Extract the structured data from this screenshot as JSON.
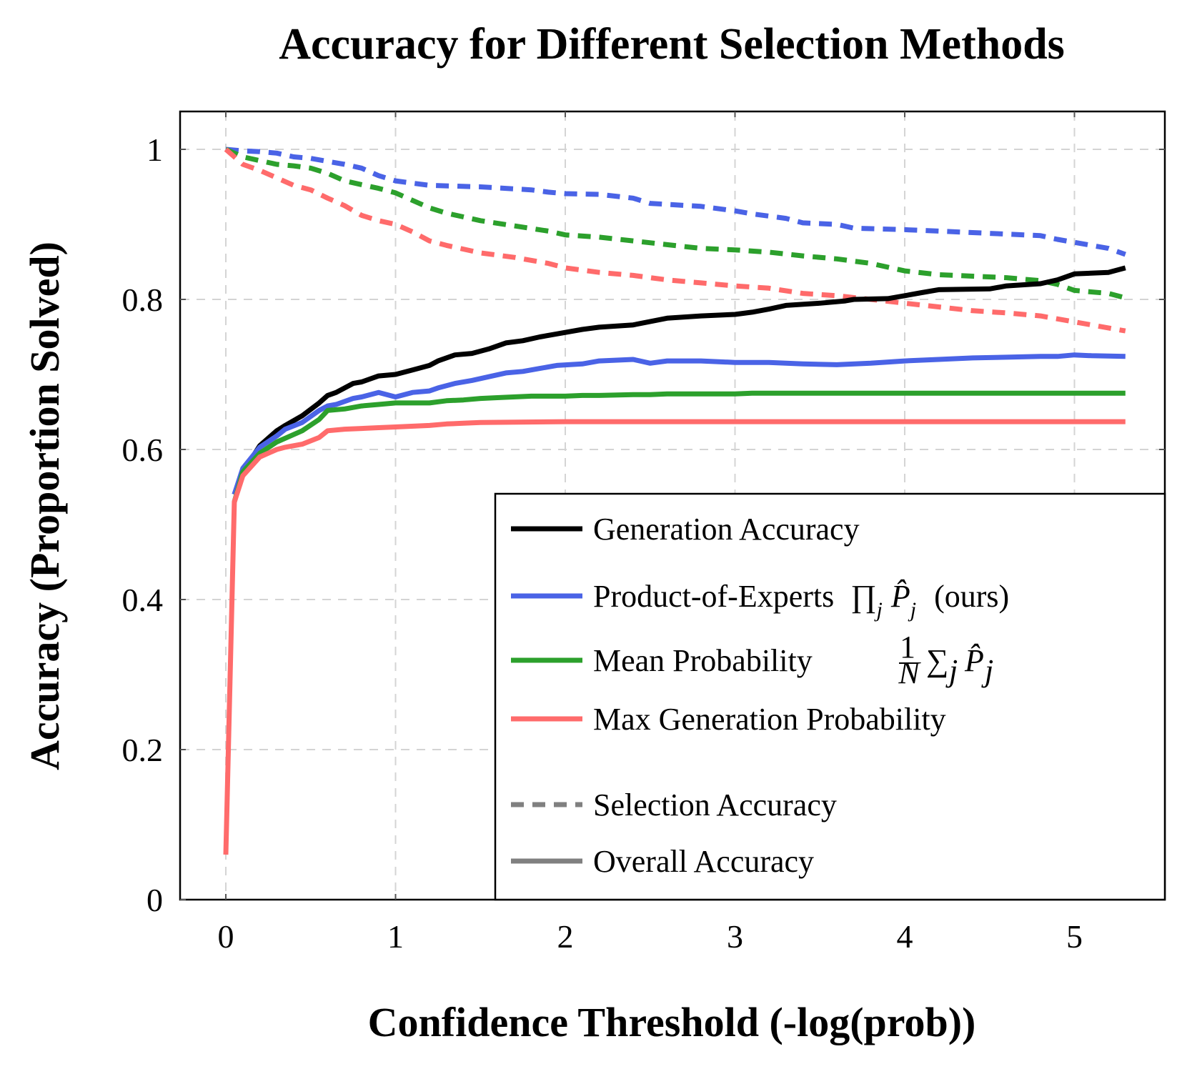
{
  "chart_data": {
    "type": "line",
    "title": "Accuracy for Different Selection Methods",
    "xlabel": "Confidence Threshold (-log(prob))",
    "ylabel": "Accuracy (Proportion Solved)",
    "xlim": [
      -0.27,
      5.55
    ],
    "ylim": [
      0,
      1.05
    ],
    "xticks": [
      0,
      1,
      2,
      3,
      4,
      5
    ],
    "yticks": [
      0,
      0.2,
      0.4,
      0.6,
      0.8,
      1
    ],
    "ytick_labels": [
      "0",
      "0.2",
      "0.4",
      "0.6",
      "0.8",
      "1"
    ],
    "xtick_labels": [
      "0",
      "1",
      "2",
      "3",
      "4",
      "5"
    ],
    "grid": true,
    "legend_placement": "bottom-right",
    "colors": {
      "generation": "#000000",
      "product": "#4a63e6",
      "mean": "#2ca02c",
      "max": "#ff6b6b",
      "style_legend": "#808080"
    },
    "legend": {
      "generation": "Generation Accuracy",
      "product_prefix": "Product-of-Experts",
      "product_suffix": "(ours)",
      "mean_prefix": "Mean Probability",
      "max": "Max Generation Probability",
      "selection": "Selection Accuracy",
      "overall": "Overall Accuracy"
    },
    "series": [
      {
        "name": "Generation Accuracy",
        "style": "solid",
        "color": "#000000",
        "x": [
          0.05,
          0.1,
          0.2,
          0.3,
          0.35,
          0.45,
          0.55,
          0.6,
          0.65,
          0.75,
          0.8,
          0.9,
          1.0,
          1.1,
          1.2,
          1.25,
          1.35,
          1.45,
          1.55,
          1.65,
          1.75,
          1.85,
          1.95,
          2.1,
          2.2,
          2.4,
          2.6,
          2.8,
          3.0,
          3.1,
          3.2,
          3.3,
          3.5,
          3.65,
          3.7,
          3.9,
          4.0,
          4.1,
          4.2,
          4.5,
          4.6,
          4.8,
          4.9,
          5.0,
          5.2,
          5.3
        ],
        "y": [
          0.54,
          0.57,
          0.605,
          0.625,
          0.632,
          0.645,
          0.662,
          0.672,
          0.676,
          0.688,
          0.69,
          0.698,
          0.7,
          0.706,
          0.712,
          0.718,
          0.726,
          0.728,
          0.734,
          0.742,
          0.745,
          0.75,
          0.754,
          0.76,
          0.763,
          0.766,
          0.775,
          0.778,
          0.78,
          0.783,
          0.787,
          0.792,
          0.795,
          0.798,
          0.8,
          0.801,
          0.805,
          0.809,
          0.813,
          0.814,
          0.818,
          0.821,
          0.826,
          0.834,
          0.836,
          0.842
        ]
      },
      {
        "name": "Product-of-Experts (ours)",
        "style": "solid",
        "color": "#4a63e6",
        "x": [
          0.05,
          0.1,
          0.2,
          0.3,
          0.35,
          0.45,
          0.55,
          0.6,
          0.65,
          0.75,
          0.8,
          0.9,
          1.0,
          1.1,
          1.2,
          1.25,
          1.35,
          1.45,
          1.55,
          1.65,
          1.75,
          1.85,
          1.95,
          2.1,
          2.2,
          2.4,
          2.5,
          2.6,
          2.8,
          3.0,
          3.2,
          3.4,
          3.6,
          3.8,
          4.0,
          4.2,
          4.4,
          4.6,
          4.8,
          4.9,
          5.0,
          5.1,
          5.3
        ],
        "y": [
          0.54,
          0.575,
          0.603,
          0.618,
          0.627,
          0.636,
          0.652,
          0.658,
          0.66,
          0.668,
          0.67,
          0.676,
          0.67,
          0.676,
          0.678,
          0.682,
          0.688,
          0.692,
          0.697,
          0.702,
          0.704,
          0.708,
          0.712,
          0.714,
          0.718,
          0.72,
          0.715,
          0.718,
          0.718,
          0.716,
          0.716,
          0.714,
          0.713,
          0.715,
          0.718,
          0.72,
          0.722,
          0.723,
          0.724,
          0.724,
          0.726,
          0.725,
          0.724
        ]
      },
      {
        "name": "Mean Probability",
        "style": "solid",
        "color": "#2ca02c",
        "x": [
          0.05,
          0.1,
          0.2,
          0.3,
          0.35,
          0.45,
          0.55,
          0.6,
          0.7,
          0.8,
          0.9,
          1.0,
          1.1,
          1.2,
          1.3,
          1.4,
          1.5,
          1.6,
          1.8,
          2.0,
          2.1,
          2.2,
          2.4,
          2.5,
          2.6,
          2.7,
          2.8,
          3.0,
          3.1,
          4.0,
          5.0,
          5.3
        ],
        "y": [
          0.53,
          0.57,
          0.595,
          0.61,
          0.615,
          0.625,
          0.64,
          0.652,
          0.654,
          0.658,
          0.66,
          0.662,
          0.662,
          0.662,
          0.665,
          0.666,
          0.668,
          0.669,
          0.671,
          0.671,
          0.672,
          0.672,
          0.673,
          0.673,
          0.674,
          0.674,
          0.674,
          0.674,
          0.675,
          0.675,
          0.675,
          0.675
        ]
      },
      {
        "name": "Max Generation Probability",
        "style": "solid",
        "color": "#ff6b6b",
        "x": [
          0.0,
          0.05,
          0.1,
          0.2,
          0.3,
          0.35,
          0.45,
          0.55,
          0.6,
          0.7,
          0.8,
          0.9,
          1.0,
          1.2,
          1.3,
          1.4,
          1.5,
          2.0,
          3.0,
          4.0,
          5.0,
          5.3
        ],
        "y": [
          0.06,
          0.53,
          0.565,
          0.59,
          0.6,
          0.603,
          0.607,
          0.616,
          0.625,
          0.627,
          0.628,
          0.629,
          0.63,
          0.632,
          0.634,
          0.635,
          0.636,
          0.637,
          0.637,
          0.637,
          0.637,
          0.637
        ]
      },
      {
        "name": "Product-of-Experts Selection",
        "style": "dashed",
        "color": "#4a63e6",
        "x": [
          0.0,
          0.1,
          0.2,
          0.3,
          0.4,
          0.5,
          0.6,
          0.7,
          0.8,
          0.9,
          1.0,
          1.1,
          1.2,
          1.5,
          1.8,
          1.9,
          2.0,
          2.2,
          2.4,
          2.5,
          2.8,
          3.0,
          3.1,
          3.3,
          3.4,
          3.6,
          3.7,
          4.0,
          4.2,
          4.4,
          4.6,
          4.8,
          4.9,
          5.0,
          5.1,
          5.2,
          5.3
        ],
        "y": [
          1.0,
          0.998,
          0.997,
          0.995,
          0.99,
          0.988,
          0.984,
          0.98,
          0.975,
          0.965,
          0.958,
          0.955,
          0.952,
          0.95,
          0.946,
          0.943,
          0.941,
          0.94,
          0.935,
          0.928,
          0.924,
          0.918,
          0.914,
          0.908,
          0.902,
          0.9,
          0.895,
          0.893,
          0.891,
          0.889,
          0.887,
          0.885,
          0.88,
          0.876,
          0.872,
          0.868,
          0.86
        ]
      },
      {
        "name": "Mean Probability Selection",
        "style": "dashed",
        "color": "#2ca02c",
        "x": [
          0.0,
          0.1,
          0.2,
          0.3,
          0.4,
          0.5,
          0.6,
          0.7,
          0.8,
          0.9,
          1.0,
          1.1,
          1.2,
          1.3,
          1.5,
          1.7,
          1.9,
          2.0,
          2.2,
          2.4,
          2.6,
          2.8,
          3.0,
          3.2,
          3.4,
          3.6,
          3.8,
          4.0,
          4.2,
          4.4,
          4.6,
          4.8,
          4.9,
          5.0,
          5.2,
          5.3
        ],
        "y": [
          1.0,
          0.99,
          0.985,
          0.98,
          0.978,
          0.975,
          0.968,
          0.958,
          0.953,
          0.948,
          0.942,
          0.932,
          0.922,
          0.915,
          0.905,
          0.898,
          0.891,
          0.886,
          0.883,
          0.878,
          0.873,
          0.868,
          0.866,
          0.863,
          0.858,
          0.854,
          0.848,
          0.838,
          0.833,
          0.831,
          0.829,
          0.825,
          0.82,
          0.812,
          0.808,
          0.802
        ]
      },
      {
        "name": "Max Generation Probability Selection",
        "style": "dashed",
        "color": "#ff6b6b",
        "x": [
          0.0,
          0.1,
          0.2,
          0.3,
          0.4,
          0.5,
          0.6,
          0.7,
          0.8,
          0.9,
          1.0,
          1.1,
          1.2,
          1.3,
          1.5,
          1.7,
          1.9,
          2.0,
          2.2,
          2.4,
          2.6,
          2.8,
          3.0,
          3.2,
          3.4,
          3.6,
          3.8,
          4.0,
          4.2,
          4.4,
          4.6,
          4.8,
          5.0,
          5.2,
          5.3
        ],
        "y": [
          1.0,
          0.98,
          0.972,
          0.962,
          0.952,
          0.946,
          0.935,
          0.925,
          0.912,
          0.905,
          0.9,
          0.89,
          0.878,
          0.872,
          0.862,
          0.856,
          0.848,
          0.842,
          0.836,
          0.832,
          0.826,
          0.822,
          0.818,
          0.815,
          0.808,
          0.805,
          0.8,
          0.795,
          0.79,
          0.785,
          0.782,
          0.778,
          0.77,
          0.762,
          0.758
        ]
      }
    ]
  }
}
